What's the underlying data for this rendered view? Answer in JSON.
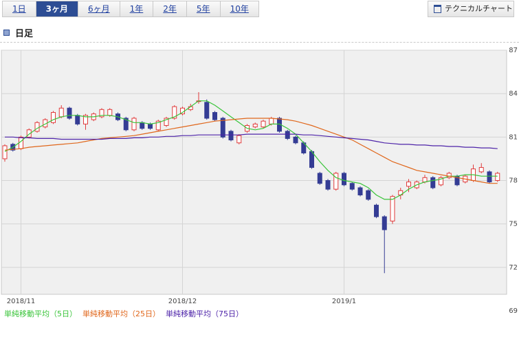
{
  "tabs": [
    "1日",
    "3ヶ月",
    "6ヶ月",
    "1年",
    "2年",
    "5年",
    "10年"
  ],
  "selected_tab": 1,
  "button": "テクニカルチャート",
  "section": "日足",
  "chart_data": {
    "type": "candlestick",
    "categories": [
      null,
      null,
      "2018/11",
      null,
      null,
      null,
      null,
      null,
      null,
      null,
      null,
      null,
      null,
      null,
      null,
      null,
      null,
      null,
      null,
      null,
      null,
      null,
      "2018/12",
      null,
      null,
      null,
      null,
      null,
      null,
      null,
      null,
      null,
      null,
      null,
      null,
      null,
      null,
      null,
      null,
      null,
      null,
      null,
      "2019/1",
      null,
      null,
      null,
      null,
      null,
      null,
      null,
      null,
      null,
      null,
      null,
      null,
      null,
      null,
      null,
      null,
      null,
      null,
      null
    ],
    "open": [
      79.5,
      80.5,
      80.2,
      81.0,
      81.4,
      81.7,
      82.0,
      82.4,
      83.0,
      82.5,
      81.9,
      82.2,
      82.4,
      82.5,
      82.6,
      82.3,
      81.5,
      82.0,
      81.9,
      81.5,
      81.8,
      82.3,
      82.6,
      82.9,
      83.5,
      83.4,
      82.7,
      82.3,
      81.4,
      80.6,
      81.4,
      81.7,
      81.7,
      81.9,
      82.3,
      81.4,
      81.0,
      80.6,
      80.0,
      78.5,
      78.0,
      77.4,
      78.5,
      77.8,
      77.5,
      77.3,
      76.3,
      75.5,
      75.2,
      77.0,
      77.6,
      77.5,
      77.9,
      78.2,
      77.7,
      78.2,
      78.3,
      77.9,
      78.0,
      78.6,
      78.6,
      78.0
    ],
    "high": [
      80.5,
      80.6,
      81.1,
      81.6,
      82.1,
      82.3,
      82.8,
      83.2,
      83.1,
      82.6,
      82.6,
      82.7,
      83.0,
      83.0,
      82.7,
      82.4,
      82.4,
      82.1,
      82.0,
      82.2,
      82.4,
      83.2,
      83.1,
      83.3,
      84.1,
      83.6,
      82.8,
      82.4,
      81.5,
      81.2,
      81.9,
      82.0,
      82.2,
      82.4,
      82.4,
      81.5,
      81.1,
      80.7,
      80.1,
      78.6,
      78.1,
      78.6,
      78.6,
      77.9,
      77.6,
      77.4,
      76.4,
      75.6,
      77.0,
      77.5,
      78.1,
      78.0,
      78.4,
      78.3,
      78.3,
      78.6,
      78.4,
      78.4,
      79.1,
      79.2,
      78.7,
      78.6
    ],
    "low": [
      79.3,
      80.0,
      80.1,
      80.9,
      81.3,
      81.6,
      81.9,
      82.3,
      82.2,
      81.8,
      81.5,
      82.1,
      82.3,
      82.4,
      82.1,
      81.4,
      81.4,
      81.5,
      81.5,
      81.4,
      81.7,
      82.2,
      82.5,
      82.8,
      83.3,
      82.2,
      82.1,
      80.9,
      80.7,
      80.5,
      81.3,
      81.6,
      81.6,
      81.8,
      81.3,
      80.8,
      80.5,
      79.8,
      78.8,
      77.7,
      77.3,
      77.3,
      77.6,
      77.3,
      76.9,
      76.6,
      75.4,
      71.6,
      75.0,
      76.7,
      77.2,
      77.4,
      77.8,
      77.4,
      77.6,
      78.1,
      77.6,
      77.8,
      77.9,
      78.5,
      77.8,
      77.9
    ],
    "close": [
      80.4,
      80.1,
      81.0,
      81.5,
      82.0,
      82.2,
      82.7,
      83.0,
      82.3,
      81.9,
      82.5,
      82.6,
      82.9,
      82.9,
      82.2,
      81.5,
      82.3,
      81.6,
      81.6,
      82.1,
      82.3,
      83.1,
      83.0,
      83.1,
      83.5,
      82.3,
      82.2,
      81.0,
      80.8,
      81.1,
      81.8,
      81.9,
      82.1,
      82.3,
      81.4,
      80.9,
      80.6,
      79.9,
      78.9,
      77.8,
      77.4,
      78.5,
      77.7,
      77.4,
      77.0,
      76.7,
      75.5,
      74.6,
      76.9,
      77.3,
      77.9,
      77.9,
      78.2,
      77.5,
      78.2,
      78.5,
      77.7,
      78.3,
      78.8,
      78.9,
      77.9,
      78.5
    ],
    "up_color": "#e03a3a",
    "down_color": "#343c94",
    "series": [
      {
        "name": "単純移動平均（5日）",
        "color": "#39c439",
        "values": [
          80.0,
          80.3,
          80.7,
          81.2,
          81.6,
          81.9,
          82.2,
          82.4,
          82.5,
          82.5,
          82.4,
          82.4,
          82.5,
          82.5,
          82.4,
          82.2,
          82.0,
          82.0,
          81.9,
          82.0,
          82.2,
          82.4,
          82.7,
          83.1,
          83.5,
          83.5,
          83.2,
          82.8,
          82.4,
          82.0,
          81.6,
          81.5,
          81.6,
          81.9,
          81.9,
          81.6,
          81.2,
          80.6,
          80.0,
          79.3,
          78.7,
          78.2,
          78.0,
          77.9,
          77.8,
          77.5,
          77.0,
          76.7,
          76.7,
          77.0,
          77.4,
          77.7,
          77.9,
          78.0,
          78.1,
          78.3,
          78.3,
          78.4,
          78.4,
          78.3,
          78.3,
          78.3
        ]
      },
      {
        "name": "単純移動平均（25日）",
        "color": "#e0661a",
        "values": [
          80.1,
          80.15,
          80.2,
          80.3,
          80.35,
          80.4,
          80.45,
          80.5,
          80.55,
          80.6,
          80.7,
          80.8,
          80.9,
          80.95,
          81.0,
          81.05,
          81.1,
          81.2,
          81.3,
          81.4,
          81.5,
          81.6,
          81.7,
          81.8,
          81.9,
          82.0,
          82.1,
          82.15,
          82.2,
          82.25,
          82.3,
          82.3,
          82.3,
          82.3,
          82.25,
          82.2,
          82.1,
          81.95,
          81.8,
          81.6,
          81.4,
          81.2,
          81.0,
          80.8,
          80.5,
          80.2,
          79.9,
          79.6,
          79.3,
          79.1,
          78.9,
          78.7,
          78.6,
          78.5,
          78.4,
          78.3,
          78.2,
          78.1,
          78.0,
          77.9,
          77.8,
          77.8
        ]
      },
      {
        "name": "単純移動平均（75日）",
        "color": "#4c22a8",
        "values": [
          81.0,
          81.0,
          80.95,
          80.95,
          80.9,
          80.9,
          80.9,
          80.85,
          80.85,
          80.85,
          80.85,
          80.85,
          80.85,
          80.9,
          80.9,
          80.9,
          80.95,
          80.95,
          81.0,
          81.0,
          81.05,
          81.05,
          81.1,
          81.1,
          81.15,
          81.15,
          81.15,
          81.15,
          81.15,
          81.15,
          81.2,
          81.2,
          81.2,
          81.2,
          81.2,
          81.2,
          81.2,
          81.15,
          81.15,
          81.1,
          81.05,
          81.0,
          80.95,
          80.9,
          80.85,
          80.8,
          80.7,
          80.6,
          80.55,
          80.5,
          80.5,
          80.45,
          80.45,
          80.4,
          80.4,
          80.35,
          80.35,
          80.3,
          80.3,
          80.25,
          80.25,
          80.2
        ]
      }
    ],
    "ylim": [
      69,
      87
    ],
    "yticks": [
      69,
      72,
      75,
      78,
      81,
      84,
      87
    ],
    "grid": true
  }
}
